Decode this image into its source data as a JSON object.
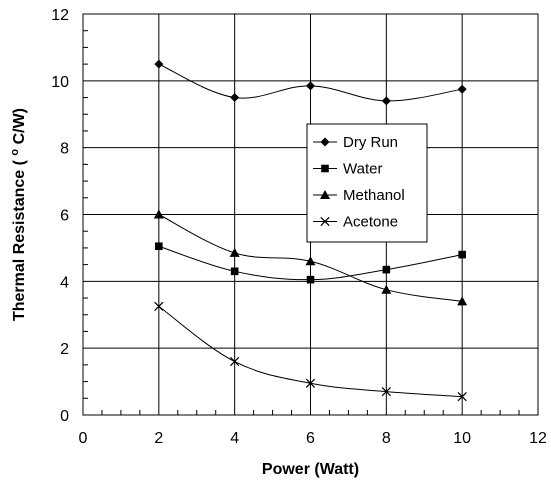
{
  "chart_data": {
    "type": "line",
    "title": "",
    "xlabel": "Power (Watt)",
    "ylabel_main": "Thermal Resistance (",
    "ylabel_sup": "o",
    "ylabel_tail": "C/W)",
    "xlim": [
      0,
      12
    ],
    "ylim": [
      0,
      12
    ],
    "x_ticks": [
      "0",
      "2",
      "4",
      "6",
      "8",
      "10",
      "12"
    ],
    "y_ticks": [
      "0",
      "2",
      "4",
      "6",
      "8",
      "10",
      "12"
    ],
    "grid": true,
    "legend_position": "right",
    "series": [
      {
        "name": "Dry Run",
        "marker": "diamond",
        "x": [
          2,
          4,
          6,
          8,
          10
        ],
        "values": [
          10.5,
          9.5,
          9.85,
          9.4,
          9.75
        ]
      },
      {
        "name": "Water",
        "marker": "square",
        "x": [
          2,
          4,
          6,
          8,
          10
        ],
        "values": [
          5.05,
          4.3,
          4.05,
          4.35,
          4.8
        ]
      },
      {
        "name": "Methanol",
        "marker": "triangle",
        "x": [
          2,
          4,
          6,
          8,
          10
        ],
        "values": [
          6.0,
          4.85,
          4.6,
          3.75,
          3.4
        ]
      },
      {
        "name": "Acetone",
        "marker": "x",
        "x": [
          2,
          4,
          6,
          8,
          10
        ],
        "values": [
          3.25,
          1.6,
          0.95,
          0.7,
          0.55
        ]
      }
    ]
  }
}
